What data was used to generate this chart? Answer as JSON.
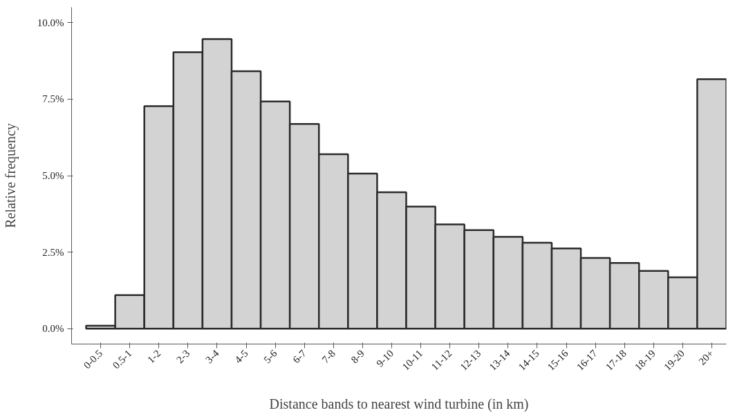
{
  "chart_data": {
    "type": "bar",
    "xlabel": "Distance bands to nearest wind turbine (in km)",
    "ylabel": "Relative frequency",
    "categories": [
      "0-0.5",
      "0.5-1",
      "1-2",
      "2-3",
      "3-4",
      "4-5",
      "5-6",
      "6-7",
      "7-8",
      "8-9",
      "9-10",
      "10-11",
      "11-12",
      "12-13",
      "13-14",
      "14-15",
      "15-16",
      "16-17",
      "17-18",
      "18-19",
      "19-20",
      "20+"
    ],
    "values": [
      0.1,
      1.1,
      7.27,
      9.03,
      9.46,
      8.41,
      7.42,
      6.69,
      5.7,
      5.07,
      4.46,
      3.99,
      3.41,
      3.22,
      3.0,
      2.81,
      2.62,
      2.31,
      2.15,
      1.89,
      1.68,
      8.15
    ],
    "color": "#d3d3d3",
    "ylim": [
      -0.5,
      10.5
    ],
    "yticks": [
      {
        "value": 0,
        "label": "0.0%"
      },
      {
        "value": 2.5,
        "label": "2.5%"
      },
      {
        "value": 5,
        "label": "5.0%"
      },
      {
        "value": 7.5,
        "label": "7.5%"
      },
      {
        "value": 10,
        "label": "10.0%"
      }
    ],
    "grid": false
  }
}
